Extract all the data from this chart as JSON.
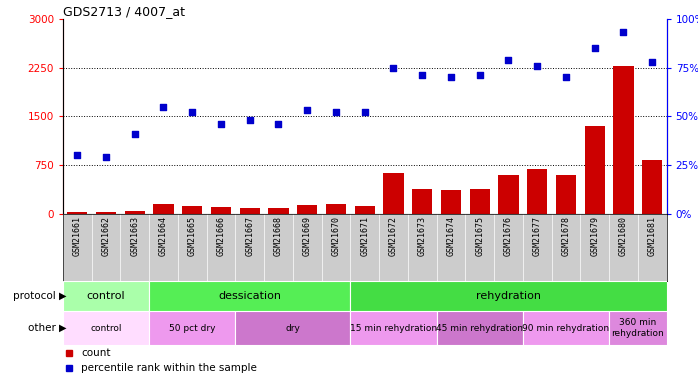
{
  "title": "GDS2713 / 4007_at",
  "samples": [
    "GSM21661",
    "GSM21662",
    "GSM21663",
    "GSM21664",
    "GSM21665",
    "GSM21666",
    "GSM21667",
    "GSM21668",
    "GSM21669",
    "GSM21670",
    "GSM21671",
    "GSM21672",
    "GSM21673",
    "GSM21674",
    "GSM21675",
    "GSM21676",
    "GSM21677",
    "GSM21678",
    "GSM21679",
    "GSM21680",
    "GSM21681"
  ],
  "counts": [
    25,
    20,
    50,
    150,
    120,
    110,
    95,
    90,
    130,
    155,
    125,
    620,
    380,
    370,
    380,
    590,
    690,
    590,
    1350,
    2280,
    820
  ],
  "percentiles": [
    30,
    29,
    41,
    55,
    52,
    46,
    48,
    46,
    53,
    52,
    52,
    75,
    71,
    70,
    71,
    79,
    76,
    70,
    85,
    93,
    78
  ],
  "bar_color": "#cc0000",
  "dot_color": "#0000cc",
  "ylim_left": [
    0,
    3000
  ],
  "ylim_right": [
    0,
    100
  ],
  "yticks_left": [
    0,
    750,
    1500,
    2250,
    3000
  ],
  "yticks_right": [
    0,
    25,
    50,
    75,
    100
  ],
  "ytick_labels_left": [
    "0",
    "750",
    "1500",
    "2250",
    "3000"
  ],
  "ytick_labels_right": [
    "0%",
    "25%",
    "50%",
    "75%",
    "100%"
  ],
  "protocol_labels": [
    {
      "text": "control",
      "start": 0,
      "end": 3,
      "color": "#aaffaa"
    },
    {
      "text": "dessication",
      "start": 3,
      "end": 10,
      "color": "#55ee55"
    },
    {
      "text": "rehydration",
      "start": 10,
      "end": 21,
      "color": "#44dd44"
    }
  ],
  "other_labels": [
    {
      "text": "control",
      "start": 0,
      "end": 3,
      "color": "#ffddff"
    },
    {
      "text": "50 pct dry",
      "start": 3,
      "end": 6,
      "color": "#ee99ee"
    },
    {
      "text": "dry",
      "start": 6,
      "end": 10,
      "color": "#cc77cc"
    },
    {
      "text": "15 min rehydration",
      "start": 10,
      "end": 13,
      "color": "#ee99ee"
    },
    {
      "text": "45 min rehydration",
      "start": 13,
      "end": 16,
      "color": "#cc77cc"
    },
    {
      "text": "90 min rehydration",
      "start": 16,
      "end": 19,
      "color": "#ee99ee"
    },
    {
      "text": "360 min\nrehydration",
      "start": 19,
      "end": 21,
      "color": "#dd88dd"
    }
  ],
  "grid_dotted_at": [
    750,
    1500,
    2250
  ],
  "bg_color": "#ffffff",
  "tick_area_color": "#cccccc",
  "n_samples": 21
}
